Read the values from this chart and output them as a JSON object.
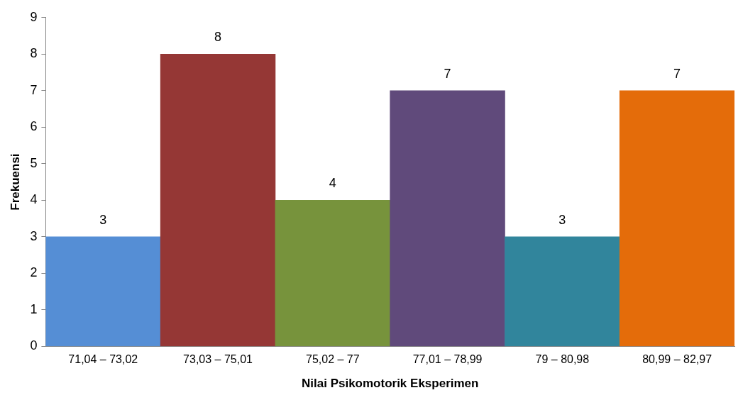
{
  "chart_data": {
    "type": "bar",
    "xlabel": "Nilai Psikomotorik Eksperimen",
    "ylabel": "Frekuensi",
    "categories": [
      "71,04 – 73,02",
      "73,03 – 75,01",
      "75,02 – 77",
      "77,01 – 78,99",
      "79 – 80,98",
      "80,99 – 82,97"
    ],
    "values": [
      3,
      8,
      4,
      7,
      3,
      7
    ],
    "colors": [
      "#558ed5",
      "#953735",
      "#77933c",
      "#604a7b",
      "#31859c",
      "#e46c0a"
    ],
    "ylim": [
      0,
      9
    ],
    "yticks": [
      0,
      1,
      2,
      3,
      4,
      5,
      6,
      7,
      8,
      9
    ],
    "grid": false,
    "data_labels": true
  }
}
